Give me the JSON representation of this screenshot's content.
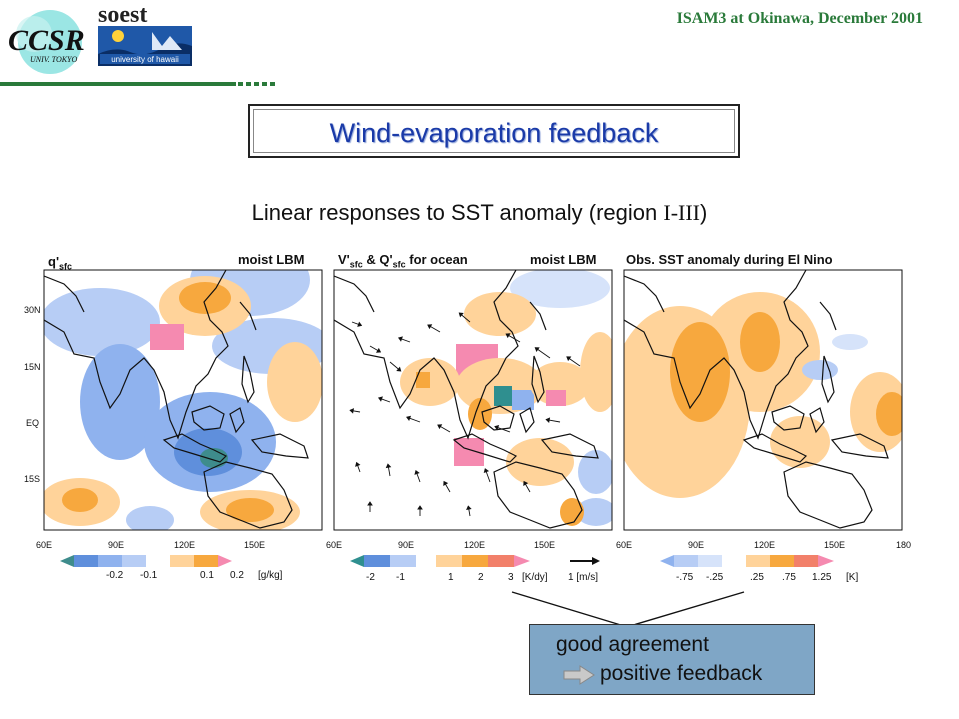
{
  "header": {
    "logo_left": {
      "main": "CCSR",
      "sub": "UNIV. TOKYO"
    },
    "logo_right": {
      "main": "soest",
      "sub": "university of hawaii"
    },
    "conference": "ISAM3 at Okinawa, December 2001"
  },
  "slide_title": "Wind-evaporation feedback",
  "subtitle": {
    "text": "Linear responses to SST anomaly (region ",
    "roman": "I-III",
    "close": ")"
  },
  "panels": [
    {
      "label_left": "q'",
      "label_left_sub": "sfc",
      "label_right": "moist LBM",
      "colorbar_labels": [
        "-0.2",
        "-0.1",
        "0.1",
        "0.2"
      ],
      "units": "[g/kg]"
    },
    {
      "label_left": "V'",
      "label_left_sub": "sfc",
      "label_left_mid": " & Q'",
      "label_left_sub2": "sfc",
      "label_left_end": " for ocean",
      "label_right": "moist LBM",
      "colorbar_labels": [
        "-2",
        "-1",
        "1",
        "2",
        "3"
      ],
      "units": "[K/dy]",
      "vector_ref": "1 [m/s]"
    },
    {
      "label_left": "Obs. SST anomaly during El Nino",
      "colorbar_labels": [
        "-.75",
        "-.25",
        ".25",
        ".75",
        "1.25"
      ],
      "units": "[K]"
    }
  ],
  "axes": {
    "y_ticks": [
      "30N",
      "15N",
      "EQ",
      "15S"
    ],
    "x_ticks_panel1": [
      "60E",
      "90E",
      "120E",
      "150E"
    ],
    "x_ticks_panel2": [
      "60E",
      "90E",
      "120E",
      "150E"
    ],
    "x_ticks_panel3": [
      "60E",
      "90E",
      "120E",
      "150E",
      "180"
    ]
  },
  "conclusion": {
    "line1": "good agreement",
    "line2": "positive feedback"
  },
  "colors": {
    "conference_green": "#2a7a3a",
    "title_blue": "#1a3aa8",
    "box_blue": "#7fa6c6",
    "warm": "#f5a623",
    "cool": "#6f9ee8"
  }
}
